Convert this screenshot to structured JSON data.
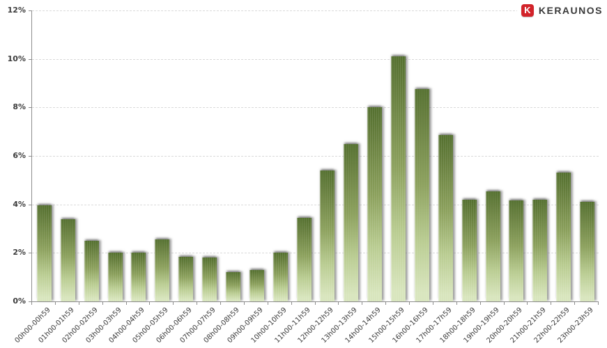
{
  "logo": {
    "text": "KERAUNOS",
    "icon_letter": "K"
  },
  "colors": {
    "background": "#ffffff",
    "bar_top": "#54702f",
    "bar_mid": "#8ba05c",
    "bar_bottom": "#d8e5bd",
    "axis": "#8c8c8c",
    "grid": "#d9d9d9",
    "label": "#3c3c3c",
    "logo_red": "#d2232a",
    "logo_text": "#3a3a3a"
  },
  "chart_data": {
    "type": "bar",
    "title": "",
    "xlabel": "",
    "ylabel": "",
    "categories": [
      "00h00-00h59",
      "01h00-01h59",
      "02h00-02h59",
      "03h00-03h59",
      "04h00-04h59",
      "05h00-05h59",
      "06h00-06h59",
      "07h00-07h59",
      "08h00-08h59",
      "09h00-09h59",
      "10h00-10h59",
      "11h00-11h59",
      "12h00-12h59",
      "13h00-13h59",
      "14h00-14h59",
      "15h00-15h59",
      "16h00-16h59",
      "17h00-17h59",
      "18h00-18h59",
      "19h00-19h59",
      "20h00-20h59",
      "21h00-21h59",
      "22h00-22h59",
      "23h00-23h59"
    ],
    "values": [
      3.95,
      3.4,
      2.5,
      2.0,
      2.0,
      2.55,
      1.85,
      1.8,
      1.2,
      1.3,
      2.0,
      3.45,
      5.4,
      6.5,
      8.0,
      10.1,
      8.75,
      6.85,
      4.2,
      4.55,
      4.15,
      4.2,
      5.3,
      4.1
    ],
    "value_unit": "%",
    "ylim": [
      0,
      12
    ],
    "ytick_step": 2,
    "yticks": [
      "0%",
      "2%",
      "4%",
      "6%",
      "8%",
      "10%",
      "12%"
    ],
    "grid": true,
    "legend": false,
    "x_labels_rotated_degrees": -45
  }
}
